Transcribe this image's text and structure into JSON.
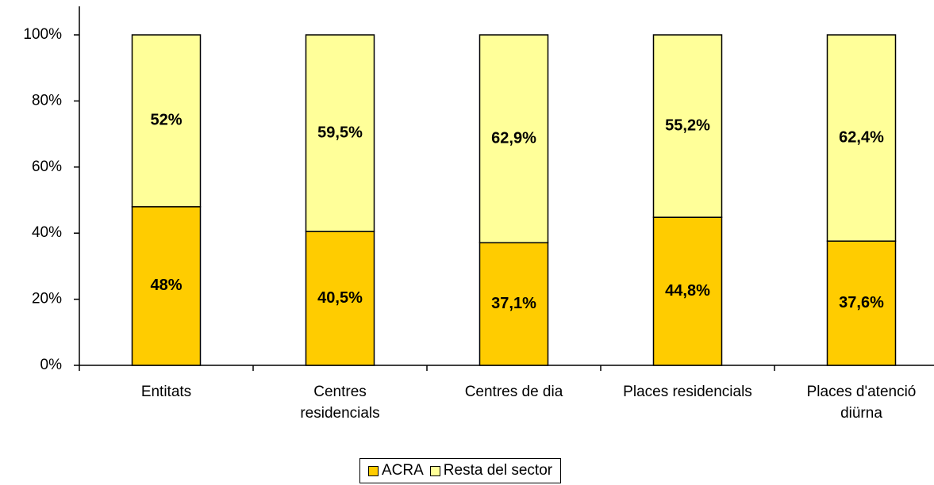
{
  "chart_data": {
    "type": "stacked_bar",
    "categories": [
      "Entitats",
      "Centres residencials",
      "Centres de dia",
      "Places residencials",
      "Places d'atenció diürna"
    ],
    "series": [
      {
        "name": "ACRA",
        "color": "#ffcc00",
        "values": [
          48,
          40.5,
          37.1,
          44.8,
          37.6
        ],
        "value_labels": [
          "48%",
          "40,5%",
          "37,1%",
          "44,8%",
          "37,6%"
        ]
      },
      {
        "name": "Resta del sector",
        "color": "#ffff99",
        "values": [
          52,
          59.5,
          62.9,
          55.2,
          62.4
        ],
        "value_labels": [
          "52%",
          "59,5%",
          "62,9%",
          "55,2%",
          "62,4%"
        ]
      }
    ],
    "ylim": [
      0,
      100
    ],
    "yticks": [
      {
        "value": 0,
        "label": "0%"
      },
      {
        "value": 20,
        "label": "20%"
      },
      {
        "value": 40,
        "label": "40%"
      },
      {
        "value": 60,
        "label": "60%"
      },
      {
        "value": 80,
        "label": "80%"
      },
      {
        "value": 100,
        "label": "100%"
      }
    ],
    "legend": "bottom"
  }
}
